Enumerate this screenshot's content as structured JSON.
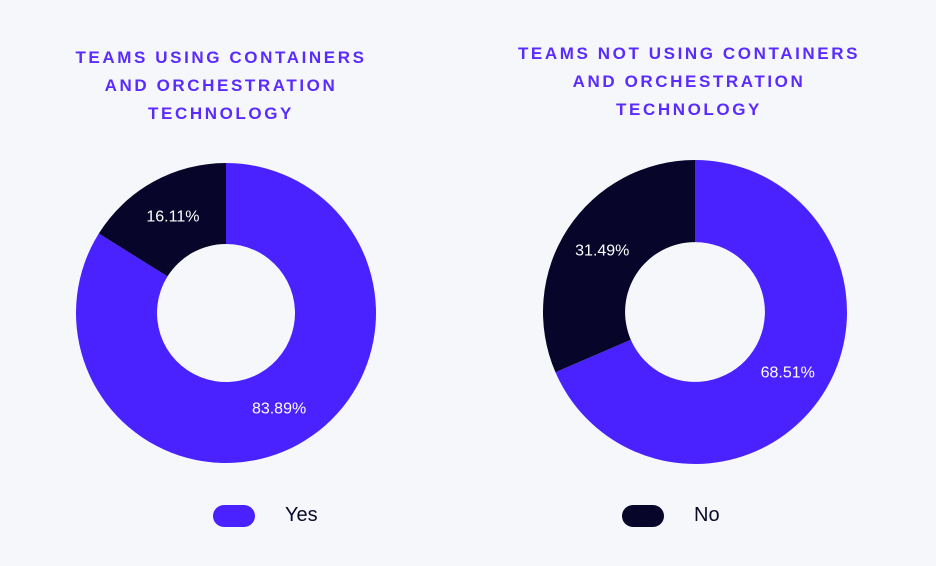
{
  "colors": {
    "yes": "#4a22ff",
    "no": "#07062a",
    "title": "#5a2bff",
    "label_text": "#ffffff",
    "background": "#f6f7fb"
  },
  "chart_data": [
    {
      "type": "pie",
      "donut": true,
      "title": "TEAMS USING CONTAINERS\nAND ORCHESTRATION\nTECHNOLOGY",
      "slices": [
        {
          "category": "Yes",
          "value": 83.89,
          "label": "83.89%"
        },
        {
          "category": "No",
          "value": 16.11,
          "label": "16.11%"
        }
      ],
      "start": "12 o'clock",
      "direction": "clockwise"
    },
    {
      "type": "pie",
      "donut": true,
      "title": "TEAMS NOT USING CONTAINERS\nAND ORCHESTRATION\nTECHNOLOGY",
      "slices": [
        {
          "category": "Yes",
          "value": 68.51,
          "label": "68.51%"
        },
        {
          "category": "No",
          "value": 31.49,
          "label": "31.49%"
        }
      ],
      "start": "12 o'clock",
      "direction": "clockwise"
    }
  ],
  "legend": {
    "items": [
      {
        "label": "Yes",
        "color_key": "yes"
      },
      {
        "label": "No",
        "color_key": "no"
      }
    ]
  }
}
